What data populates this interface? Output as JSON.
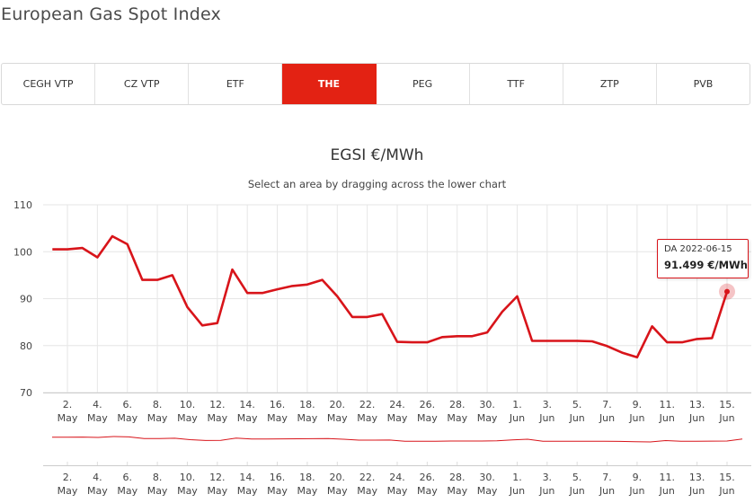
{
  "page": {
    "title": "European Gas Spot Index"
  },
  "tabs": [
    {
      "label": "CEGH VTP",
      "active": false
    },
    {
      "label": "CZ VTP",
      "active": false
    },
    {
      "label": "ETF",
      "active": false
    },
    {
      "label": "THE",
      "active": true
    },
    {
      "label": "PEG",
      "active": false
    },
    {
      "label": "TTF",
      "active": false
    },
    {
      "label": "ZTP",
      "active": false
    },
    {
      "label": "PVB",
      "active": false
    }
  ],
  "colors": {
    "accent": "#e32213",
    "series": "#d8141a",
    "grid": "#e6e6e6"
  },
  "chart_data": {
    "type": "line",
    "title": "EGSI €/MWh",
    "subtitle": "Select an area by dragging across the lower chart",
    "ylim": [
      70,
      110
    ],
    "yticks": [
      70,
      80,
      90,
      100,
      110
    ],
    "grid": true,
    "x_tick_labels": [
      [
        "2.",
        "May"
      ],
      [
        "4.",
        "May"
      ],
      [
        "6.",
        "May"
      ],
      [
        "8.",
        "May"
      ],
      [
        "10.",
        "May"
      ],
      [
        "12.",
        "May"
      ],
      [
        "14.",
        "May"
      ],
      [
        "16.",
        "May"
      ],
      [
        "18.",
        "May"
      ],
      [
        "20.",
        "May"
      ],
      [
        "22.",
        "May"
      ],
      [
        "24.",
        "May"
      ],
      [
        "26.",
        "May"
      ],
      [
        "28.",
        "May"
      ],
      [
        "30.",
        "May"
      ],
      [
        "1.",
        "Jun"
      ],
      [
        "3.",
        "Jun"
      ],
      [
        "5.",
        "Jun"
      ],
      [
        "7.",
        "Jun"
      ],
      [
        "9.",
        "Jun"
      ],
      [
        "11.",
        "Jun"
      ],
      [
        "13.",
        "Jun"
      ],
      [
        "15.",
        "Jun"
      ]
    ],
    "x": [
      "2022-05-01",
      "2022-05-02",
      "2022-05-03",
      "2022-05-04",
      "2022-05-05",
      "2022-05-06",
      "2022-05-07",
      "2022-05-08",
      "2022-05-09",
      "2022-05-10",
      "2022-05-11",
      "2022-05-12",
      "2022-05-13",
      "2022-05-14",
      "2022-05-15",
      "2022-05-16",
      "2022-05-17",
      "2022-05-18",
      "2022-05-19",
      "2022-05-20",
      "2022-05-21",
      "2022-05-22",
      "2022-05-23",
      "2022-05-24",
      "2022-05-25",
      "2022-05-26",
      "2022-05-27",
      "2022-05-28",
      "2022-05-29",
      "2022-05-30",
      "2022-05-31",
      "2022-06-01",
      "2022-06-02",
      "2022-06-03",
      "2022-06-04",
      "2022-06-05",
      "2022-06-06",
      "2022-06-07",
      "2022-06-08",
      "2022-06-09",
      "2022-06-10",
      "2022-06-11",
      "2022-06-12",
      "2022-06-13",
      "2022-06-14",
      "2022-06-15"
    ],
    "series": [
      {
        "values": [
          100.5,
          100.5,
          100.8,
          98.8,
          103.3,
          101.6,
          94.0,
          94.0,
          95.0,
          88.2,
          84.3,
          84.8,
          96.2,
          91.2,
          91.2,
          92.0,
          92.7,
          93.0,
          94.0,
          90.5,
          86.1,
          86.1,
          86.7,
          80.8,
          80.7,
          80.7,
          81.8,
          82.0,
          82.0,
          82.8,
          87.2,
          90.5,
          81.0,
          81.0,
          81.0,
          81.0,
          80.9,
          79.9,
          78.5,
          77.5,
          84.1,
          80.7,
          80.7,
          81.4,
          81.6,
          91.499
        ]
      }
    ],
    "tooltip": {
      "label": "DA 2022-06-15",
      "value": "91.499 €/MWh",
      "date": "2022-06-15"
    }
  }
}
